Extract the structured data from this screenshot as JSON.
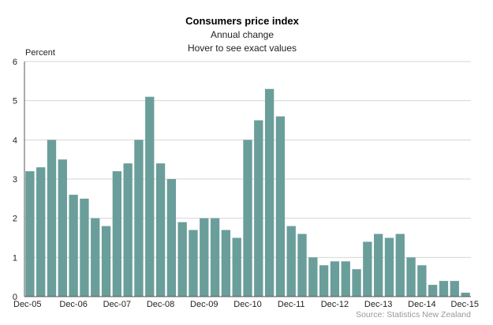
{
  "header": {
    "title": "Consumers price index",
    "subtitle": "Annual change",
    "hint": "Hover to see exact values"
  },
  "footer": {
    "source": "Source: Statistics New Zealand"
  },
  "chart_data": {
    "type": "bar",
    "title": "Consumers price index",
    "subtitle": "Annual change",
    "xlabel": "",
    "ylabel": "Percent",
    "ylim": [
      0,
      6
    ],
    "yticks": [
      0,
      1,
      2,
      3,
      4,
      5,
      6
    ],
    "grid": true,
    "bar_color": "#6a9e9a",
    "categories": [
      "Dec-05",
      "Mar-06",
      "Jun-06",
      "Sep-06",
      "Dec-06",
      "Mar-07",
      "Jun-07",
      "Sep-07",
      "Dec-07",
      "Mar-08",
      "Jun-08",
      "Sep-08",
      "Dec-08",
      "Mar-09",
      "Jun-09",
      "Sep-09",
      "Dec-09",
      "Mar-10",
      "Jun-10",
      "Sep-10",
      "Dec-10",
      "Mar-11",
      "Jun-11",
      "Sep-11",
      "Dec-11",
      "Mar-12",
      "Jun-12",
      "Sep-12",
      "Dec-12",
      "Mar-13",
      "Jun-13",
      "Sep-13",
      "Dec-13",
      "Mar-14",
      "Jun-14",
      "Sep-14",
      "Dec-14",
      "Mar-15",
      "Jun-15",
      "Sep-15",
      "Dec-15"
    ],
    "tick_labels": [
      "Dec-05",
      "Dec-06",
      "Dec-07",
      "Dec-08",
      "Dec-09",
      "Dec-10",
      "Dec-11",
      "Dec-12",
      "Dec-13",
      "Dec-14",
      "Dec-15"
    ],
    "values": [
      3.2,
      3.3,
      4.0,
      3.5,
      2.6,
      2.5,
      2.0,
      1.8,
      3.2,
      3.4,
      4.0,
      5.1,
      3.4,
      3.0,
      1.9,
      1.7,
      2.0,
      2.0,
      1.7,
      1.5,
      4.0,
      4.5,
      5.3,
      4.6,
      1.8,
      1.6,
      1.0,
      0.8,
      0.9,
      0.9,
      0.7,
      1.4,
      1.6,
      1.5,
      1.6,
      1.0,
      0.8,
      0.3,
      0.4,
      0.4,
      0.1
    ]
  }
}
